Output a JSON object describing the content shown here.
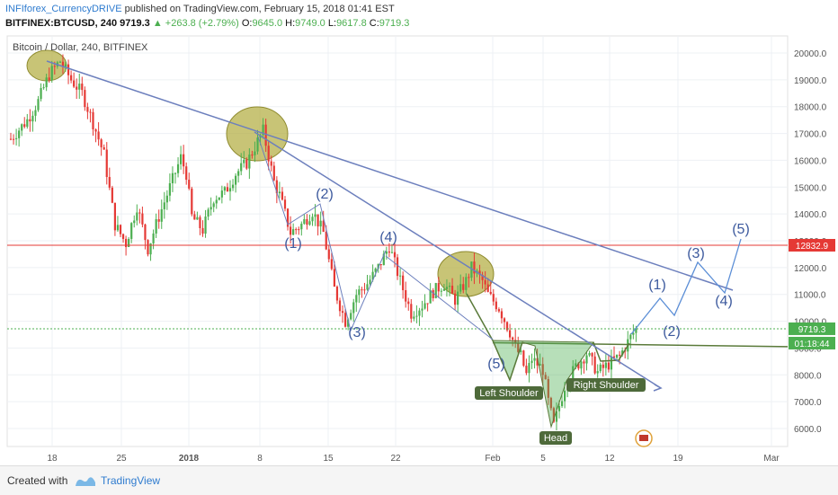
{
  "header": {
    "author": "INFIforex_CurrencyDRIVE",
    "published": "published on TradingView.com, February 15, 2018 01:41 EST",
    "symbol": "BITFINEX:BTCUSD, 240",
    "last": "9719.3",
    "change": "▲ +263.8 (+2.79%)",
    "o_label": "O:",
    "o_value": "9645.0",
    "h_label": "H:",
    "h_value": "9749.0",
    "l_label": "L:",
    "l_value": "9617.8",
    "c_label": "C:",
    "c_value": "9719.3"
  },
  "footer": {
    "created_with": "Created with",
    "brand": "TradingView",
    "brand_color": "#2e7bcf"
  },
  "chart_data": {
    "type": "candlestick",
    "title": "Bitcoin / Dollar, 240, BITFINEX",
    "ylim": [
      5400,
      20600
    ],
    "y_ticks": [
      "6000.0",
      "7000.0",
      "8000.0",
      "9000.0",
      "10000.0",
      "11000.0",
      "12000.0",
      "13000.0",
      "14000.0",
      "15000.0",
      "16000.0",
      "17000.0",
      "18000.0",
      "19000.0",
      "20000.0"
    ],
    "x_ticks": [
      "18",
      "25",
      "2018",
      "8",
      "15",
      "22",
      "Feb",
      "5",
      "12",
      "19",
      "Mar"
    ],
    "grid": true,
    "colors": {
      "up": "#4caf50",
      "down": "#e53935",
      "trend": "#6c7fbd",
      "resistance": "#e53935",
      "neckline": "#5a7a3a",
      "ellipse": "#b5b048"
    },
    "price_path": [
      [
        0,
        16800
      ],
      [
        3,
        17500
      ],
      [
        5,
        18200
      ],
      [
        7,
        19200
      ],
      [
        9,
        19700
      ],
      [
        11,
        19000
      ],
      [
        13,
        18500
      ],
      [
        15,
        17400
      ],
      [
        17,
        16200
      ],
      [
        19,
        13600
      ],
      [
        21,
        12900
      ],
      [
        23,
        14300
      ],
      [
        25,
        12700
      ],
      [
        27,
        13900
      ],
      [
        29,
        15000
      ],
      [
        31,
        16100
      ],
      [
        32,
        15500
      ],
      [
        33,
        13900
      ],
      [
        35,
        13400
      ],
      [
        37,
        14600
      ],
      [
        39,
        14800
      ],
      [
        41,
        15500
      ],
      [
        43,
        15900
      ],
      [
        45,
        16700
      ],
      [
        46,
        17100
      ],
      [
        48,
        15200
      ],
      [
        49,
        14700
      ],
      [
        51,
        13300
      ],
      [
        53,
        13600
      ],
      [
        55,
        14100
      ],
      [
        57,
        13300
      ],
      [
        59,
        11200
      ],
      [
        61,
        10000
      ],
      [
        63,
        11000
      ],
      [
        65,
        11400
      ],
      [
        67,
        12000
      ],
      [
        69,
        12800
      ],
      [
        71,
        11500
      ],
      [
        73,
        10300
      ],
      [
        75,
        10600
      ],
      [
        77,
        11100
      ],
      [
        79,
        11400
      ],
      [
        81,
        10800
      ],
      [
        83,
        11500
      ],
      [
        84,
        12000
      ],
      [
        86,
        11500
      ],
      [
        87,
        11000
      ],
      [
        89,
        10500
      ],
      [
        91,
        9600
      ],
      [
        92,
        9000
      ],
      [
        93,
        8700
      ],
      [
        94,
        8000
      ],
      [
        95,
        8600
      ],
      [
        97,
        8200
      ],
      [
        98,
        7000
      ],
      [
        99,
        6100
      ],
      [
        101,
        7600
      ],
      [
        103,
        8300
      ],
      [
        105,
        8800
      ],
      [
        107,
        8100
      ],
      [
        109,
        8400
      ],
      [
        111,
        8700
      ],
      [
        113,
        9400
      ],
      [
        114,
        9719
      ]
    ],
    "last_price": "9719.3",
    "countdown": "01:18:44",
    "resistance_level": "12832.9",
    "wave_labels_history": [
      "(1)",
      "(2)",
      "(3)",
      "(4)",
      "(5)"
    ],
    "wave_labels_projection": [
      "(1)",
      "(2)",
      "(3)",
      "(4)",
      "(5)"
    ],
    "pattern_labels": [
      "Left Shoulder",
      "Head",
      "Right Shoulder"
    ]
  }
}
